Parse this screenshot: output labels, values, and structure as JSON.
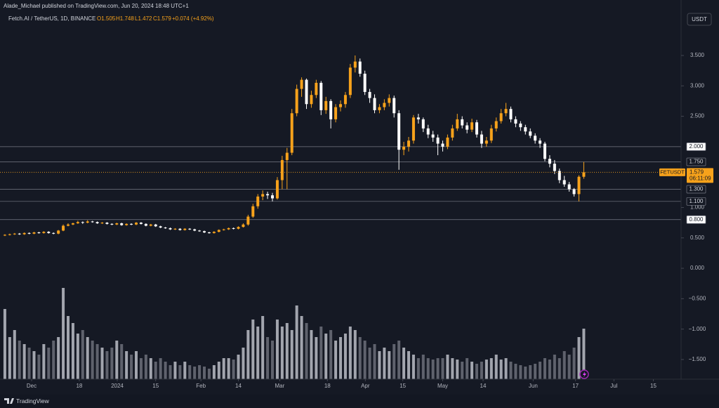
{
  "header": {
    "author": "Alade_Michael published on TradingView.com, Jun 20, 2024 18:48 UTC+1",
    "symbol": "Fetch.AI / TetherUS, 1D, BINANCE",
    "ohlc": [
      "O1.505",
      "H1.748",
      "L1.472",
      "C1.579"
    ],
    "change": "+0.074 (+4.92%)",
    "currency": "USDT"
  },
  "footer": {
    "brand": "TradingView"
  },
  "chart_data": {
    "type": "candlestick",
    "up_color": "#f7a21b",
    "down_color": "#ffffff",
    "volume_up_color": "#d1d4dc",
    "volume_down_color": "#787b86",
    "xlim": [
      -1,
      139
    ],
    "xticks": [
      {
        "value": 5.5,
        "label": "Dec"
      },
      {
        "value": 15.3,
        "label": "18"
      },
      {
        "value": 23.1,
        "label": "2024"
      },
      {
        "value": 31,
        "label": "15"
      },
      {
        "value": 40.3,
        "label": "Feb"
      },
      {
        "value": 48,
        "label": "14"
      },
      {
        "value": 56.5,
        "label": "Mar"
      },
      {
        "value": 66.3,
        "label": "18"
      },
      {
        "value": 74.1,
        "label": "Apr"
      },
      {
        "value": 81.8,
        "label": "15"
      },
      {
        "value": 90,
        "label": "May"
      },
      {
        "value": 98.3,
        "label": "14"
      },
      {
        "value": 108.6,
        "label": "Jun"
      },
      {
        "value": 117.3,
        "label": "17"
      },
      {
        "value": 125.2,
        "label": "Jul"
      },
      {
        "value": 133.3,
        "label": "15"
      }
    ],
    "ylim": [
      -1.824,
      4.412
    ],
    "yticks": [
      {
        "value": 3.5,
        "label": "3.500"
      },
      {
        "value": 3,
        "label": "3.000"
      },
      {
        "value": 2.5,
        "label": "2.500"
      },
      {
        "value": 1,
        "label": "1.000"
      },
      {
        "value": 0.5,
        "label": "0.500"
      },
      {
        "value": 0,
        "label": "0.000"
      },
      {
        "value": -0.5,
        "label": "−0.500"
      },
      {
        "value": -1,
        "label": "−1.000"
      },
      {
        "value": -1.5,
        "label": "−1.500"
      }
    ],
    "levels": [
      {
        "value": 2,
        "label": "2.000",
        "color": "#ffffff"
      },
      {
        "value": 1.75,
        "label": "1.750",
        "color": "#151924"
      },
      {
        "value": 1.3,
        "label": "1.300",
        "color": "#151924"
      },
      {
        "value": 1.1,
        "label": "1.100",
        "color": "#151924"
      },
      {
        "value": 0.8,
        "label": "0.800",
        "color": "#ffffff"
      }
    ],
    "last_price": {
      "symbol": "FETUSDT",
      "value": 1.579,
      "countdown": "06:11:09"
    },
    "vlim": [
      0,
      140
    ],
    "ohlc": [
      [
        0.54,
        0.56,
        0.53,
        0.55
      ],
      [
        0.55,
        0.57,
        0.54,
        0.56
      ],
      [
        0.56,
        0.58,
        0.55,
        0.57
      ],
      [
        0.57,
        0.58,
        0.55,
        0.56
      ],
      [
        0.56,
        0.59,
        0.55,
        0.58
      ],
      [
        0.58,
        0.59,
        0.56,
        0.57
      ],
      [
        0.57,
        0.6,
        0.56,
        0.59
      ],
      [
        0.59,
        0.6,
        0.57,
        0.58
      ],
      [
        0.58,
        0.61,
        0.57,
        0.6
      ],
      [
        0.6,
        0.61,
        0.57,
        0.58
      ],
      [
        0.58,
        0.59,
        0.56,
        0.57
      ],
      [
        0.57,
        0.63,
        0.56,
        0.62
      ],
      [
        0.62,
        0.72,
        0.61,
        0.7
      ],
      [
        0.7,
        0.74,
        0.69,
        0.72
      ],
      [
        0.72,
        0.75,
        0.71,
        0.74
      ],
      [
        0.74,
        0.78,
        0.73,
        0.76
      ],
      [
        0.76,
        0.77,
        0.73,
        0.75
      ],
      [
        0.75,
        0.79,
        0.74,
        0.77
      ],
      [
        0.77,
        0.78,
        0.75,
        0.76
      ],
      [
        0.76,
        0.77,
        0.73,
        0.74
      ],
      [
        0.74,
        0.76,
        0.73,
        0.75
      ],
      [
        0.75,
        0.76,
        0.72,
        0.73
      ],
      [
        0.73,
        0.74,
        0.71,
        0.72
      ],
      [
        0.72,
        0.75,
        0.71,
        0.74
      ],
      [
        0.74,
        0.75,
        0.7,
        0.71
      ],
      [
        0.71,
        0.74,
        0.7,
        0.73
      ],
      [
        0.73,
        0.74,
        0.71,
        0.72
      ],
      [
        0.72,
        0.76,
        0.71,
        0.75
      ],
      [
        0.75,
        0.76,
        0.72,
        0.73
      ],
      [
        0.73,
        0.74,
        0.69,
        0.7
      ],
      [
        0.7,
        0.73,
        0.69,
        0.72
      ],
      [
        0.72,
        0.73,
        0.68,
        0.69
      ],
      [
        0.69,
        0.7,
        0.66,
        0.67
      ],
      [
        0.67,
        0.68,
        0.65,
        0.66
      ],
      [
        0.66,
        0.67,
        0.63,
        0.64
      ],
      [
        0.64,
        0.66,
        0.63,
        0.65
      ],
      [
        0.65,
        0.66,
        0.62,
        0.63
      ],
      [
        0.63,
        0.66,
        0.62,
        0.65
      ],
      [
        0.65,
        0.66,
        0.63,
        0.64
      ],
      [
        0.64,
        0.65,
        0.61,
        0.62
      ],
      [
        0.62,
        0.63,
        0.6,
        0.61
      ],
      [
        0.61,
        0.62,
        0.58,
        0.59
      ],
      [
        0.59,
        0.6,
        0.57,
        0.58
      ],
      [
        0.58,
        0.61,
        0.57,
        0.6
      ],
      [
        0.6,
        0.64,
        0.59,
        0.63
      ],
      [
        0.63,
        0.65,
        0.62,
        0.64
      ],
      [
        0.64,
        0.67,
        0.63,
        0.66
      ],
      [
        0.66,
        0.67,
        0.64,
        0.65
      ],
      [
        0.65,
        0.69,
        0.64,
        0.68
      ],
      [
        0.68,
        0.74,
        0.67,
        0.72
      ],
      [
        0.72,
        0.88,
        0.7,
        0.85
      ],
      [
        0.85,
        1.06,
        0.83,
        1.02
      ],
      [
        1.02,
        1.22,
        0.98,
        1.18
      ],
      [
        1.18,
        1.28,
        1.12,
        1.22
      ],
      [
        1.22,
        1.26,
        1.14,
        1.2
      ],
      [
        1.2,
        1.24,
        1.1,
        1.15
      ],
      [
        1.15,
        1.5,
        1.13,
        1.45
      ],
      [
        1.45,
        1.85,
        1.3,
        1.78
      ],
      [
        1.78,
        1.98,
        1.3,
        1.9
      ],
      [
        1.9,
        2.62,
        1.86,
        2.55
      ],
      [
        2.55,
        3.02,
        2.5,
        2.95
      ],
      [
        2.95,
        3.14,
        2.82,
        3.1
      ],
      [
        3.1,
        3.12,
        2.62,
        2.7
      ],
      [
        2.7,
        2.92,
        2.64,
        2.85
      ],
      [
        2.85,
        3.1,
        2.8,
        3.05
      ],
      [
        3.05,
        3.08,
        2.52,
        2.6
      ],
      [
        2.6,
        2.82,
        2.54,
        2.75
      ],
      [
        2.75,
        2.78,
        2.3,
        2.45
      ],
      [
        2.45,
        2.7,
        2.4,
        2.65
      ],
      [
        2.65,
        2.76,
        2.58,
        2.7
      ],
      [
        2.7,
        2.9,
        2.64,
        2.85
      ],
      [
        2.85,
        3.36,
        2.8,
        3.3
      ],
      [
        3.3,
        3.5,
        3.22,
        3.4
      ],
      [
        3.4,
        3.45,
        3.15,
        3.2
      ],
      [
        3.2,
        3.25,
        2.85,
        2.9
      ],
      [
        2.9,
        2.95,
        2.72,
        2.8
      ],
      [
        2.8,
        2.86,
        2.55,
        2.6
      ],
      [
        2.6,
        2.7,
        2.55,
        2.65
      ],
      [
        2.65,
        2.78,
        2.6,
        2.72
      ],
      [
        2.72,
        2.86,
        2.66,
        2.8
      ],
      [
        2.8,
        2.84,
        2.48,
        2.55
      ],
      [
        2.55,
        2.6,
        1.62,
        1.95
      ],
      [
        1.95,
        2.08,
        1.86,
        2.0
      ],
      [
        2.0,
        2.16,
        1.92,
        2.1
      ],
      [
        2.1,
        2.52,
        2.05,
        2.48
      ],
      [
        2.48,
        2.54,
        2.38,
        2.45
      ],
      [
        2.45,
        2.48,
        2.24,
        2.3
      ],
      [
        2.3,
        2.36,
        2.14,
        2.2
      ],
      [
        2.2,
        2.26,
        2.08,
        2.15
      ],
      [
        2.15,
        2.2,
        1.86,
        2.05
      ],
      [
        2.05,
        2.1,
        1.92,
        2.0
      ],
      [
        2.0,
        2.2,
        1.96,
        2.15
      ],
      [
        2.15,
        2.36,
        2.1,
        2.3
      ],
      [
        2.3,
        2.54,
        2.26,
        2.45
      ],
      [
        2.45,
        2.5,
        2.3,
        2.35
      ],
      [
        2.35,
        2.4,
        2.22,
        2.28
      ],
      [
        2.28,
        2.46,
        2.24,
        2.4
      ],
      [
        2.4,
        2.44,
        2.15,
        2.2
      ],
      [
        2.2,
        2.26,
        1.98,
        2.05
      ],
      [
        2.05,
        2.16,
        2.0,
        2.1
      ],
      [
        2.1,
        2.36,
        2.06,
        2.3
      ],
      [
        2.3,
        2.48,
        2.25,
        2.42
      ],
      [
        2.42,
        2.62,
        2.38,
        2.55
      ],
      [
        2.55,
        2.72,
        2.5,
        2.62
      ],
      [
        2.62,
        2.66,
        2.4,
        2.45
      ],
      [
        2.45,
        2.5,
        2.32,
        2.38
      ],
      [
        2.38,
        2.42,
        2.26,
        2.32
      ],
      [
        2.32,
        2.36,
        2.2,
        2.25
      ],
      [
        2.25,
        2.3,
        2.14,
        2.18
      ],
      [
        2.18,
        2.22,
        2.05,
        2.1
      ],
      [
        2.1,
        2.14,
        1.98,
        2.05
      ],
      [
        2.05,
        2.08,
        1.76,
        1.8
      ],
      [
        1.8,
        1.86,
        1.66,
        1.72
      ],
      [
        1.72,
        1.78,
        1.55,
        1.6
      ],
      [
        1.6,
        1.64,
        1.4,
        1.45
      ],
      [
        1.45,
        1.52,
        1.34,
        1.38
      ],
      [
        1.38,
        1.42,
        1.26,
        1.3
      ],
      [
        1.3,
        1.32,
        1.18,
        1.22
      ],
      [
        1.22,
        1.53,
        1.1,
        1.505
      ],
      [
        1.505,
        1.748,
        1.472,
        1.579
      ]
    ],
    "volume": [
      100,
      60,
      70,
      55,
      50,
      45,
      40,
      35,
      50,
      45,
      55,
      60,
      130,
      90,
      80,
      65,
      70,
      60,
      55,
      50,
      45,
      40,
      45,
      55,
      50,
      40,
      35,
      40,
      30,
      35,
      30,
      25,
      30,
      25,
      20,
      25,
      20,
      25,
      20,
      18,
      20,
      18,
      15,
      20,
      25,
      30,
      30,
      28,
      35,
      45,
      70,
      85,
      75,
      90,
      60,
      55,
      85,
      75,
      80,
      70,
      105,
      90,
      80,
      70,
      60,
      75,
      65,
      70,
      55,
      60,
      65,
      75,
      70,
      60,
      55,
      45,
      50,
      40,
      45,
      40,
      50,
      55,
      45,
      40,
      35,
      30,
      35,
      30,
      28,
      30,
      30,
      35,
      30,
      28,
      25,
      30,
      25,
      22,
      25,
      28,
      30,
      35,
      28,
      30,
      25,
      22,
      20,
      18,
      20,
      22,
      25,
      30,
      28,
      35,
      30,
      40,
      35,
      45,
      60,
      72
    ]
  }
}
